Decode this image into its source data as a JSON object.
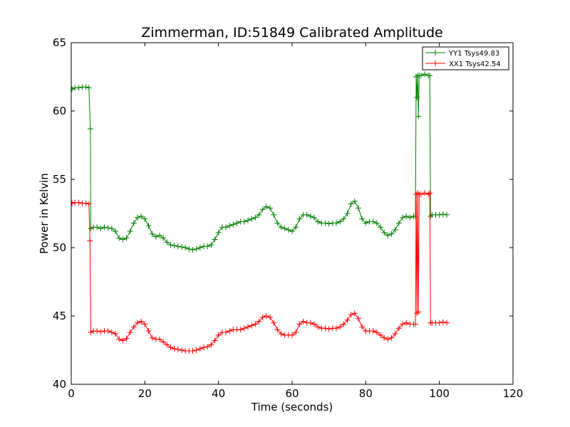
{
  "chart_data": {
    "type": "line",
    "title": "Zimmerman, ID:51849 Calibrated Amplitude",
    "xlabel": "Time (seconds)",
    "ylabel": "Power in Kelvin",
    "xlim": [
      0,
      120
    ],
    "ylim": [
      40,
      65
    ],
    "xticks": [
      0,
      20,
      40,
      60,
      80,
      100,
      120
    ],
    "yticks": [
      40,
      45,
      50,
      55,
      60,
      65
    ],
    "grid": false,
    "legend_position": "top-right",
    "marker": "+",
    "series": [
      {
        "name": "YY1 Tsys49.83",
        "color": "#008000",
        "points": [
          [
            0.2,
            61.6
          ],
          [
            1,
            61.7
          ],
          [
            2,
            61.7
          ],
          [
            3,
            61.75
          ],
          [
            4,
            61.75
          ],
          [
            4.8,
            61.7
          ],
          [
            5.2,
            58.7
          ],
          [
            5.3,
            51.4
          ],
          [
            6,
            51.5
          ],
          [
            7,
            51.5
          ],
          [
            8,
            51.4
          ],
          [
            9,
            51.5
          ],
          [
            10,
            51.45
          ],
          [
            11,
            51.4
          ],
          [
            12,
            51.2
          ],
          [
            13,
            50.7
          ],
          [
            14,
            50.6
          ],
          [
            15,
            50.7
          ],
          [
            16,
            51.2
          ],
          [
            17,
            51.8
          ],
          [
            18,
            52.2
          ],
          [
            19,
            52.3
          ],
          [
            20,
            52.1
          ],
          [
            21,
            51.6
          ],
          [
            22,
            51.0
          ],
          [
            23,
            50.8
          ],
          [
            24,
            50.9
          ],
          [
            25,
            50.7
          ],
          [
            26,
            50.4
          ],
          [
            27,
            50.2
          ],
          [
            28,
            50.15
          ],
          [
            29,
            50.1
          ],
          [
            30,
            50.05
          ],
          [
            31,
            50.0
          ],
          [
            32,
            49.9
          ],
          [
            33,
            49.85
          ],
          [
            34,
            49.9
          ],
          [
            35,
            50.0
          ],
          [
            36,
            50.1
          ],
          [
            37,
            50.1
          ],
          [
            38,
            50.2
          ],
          [
            39,
            50.6
          ],
          [
            40,
            51.1
          ],
          [
            41,
            51.5
          ],
          [
            42,
            51.5
          ],
          [
            43,
            51.6
          ],
          [
            44,
            51.7
          ],
          [
            45,
            51.8
          ],
          [
            46,
            51.9
          ],
          [
            47,
            51.9
          ],
          [
            48,
            52.0
          ],
          [
            49,
            52.1
          ],
          [
            50,
            52.2
          ],
          [
            51,
            52.4
          ],
          [
            52,
            52.8
          ],
          [
            53,
            53.0
          ],
          [
            54,
            52.9
          ],
          [
            55,
            52.4
          ],
          [
            56,
            51.8
          ],
          [
            57,
            51.5
          ],
          [
            58,
            51.4
          ],
          [
            59,
            51.3
          ],
          [
            60,
            51.2
          ],
          [
            61,
            51.5
          ],
          [
            62,
            52.1
          ],
          [
            63,
            52.4
          ],
          [
            64,
            52.4
          ],
          [
            65,
            52.3
          ],
          [
            66,
            52.2
          ],
          [
            67,
            51.9
          ],
          [
            68,
            51.8
          ],
          [
            69,
            51.8
          ],
          [
            70,
            51.75
          ],
          [
            71,
            51.8
          ],
          [
            72,
            51.8
          ],
          [
            73,
            51.9
          ],
          [
            74,
            52.1
          ],
          [
            75,
            52.5
          ],
          [
            76,
            53.2
          ],
          [
            77,
            53.4
          ],
          [
            78,
            52.9
          ],
          [
            79,
            52.1
          ],
          [
            80,
            51.8
          ],
          [
            81,
            51.9
          ],
          [
            82,
            51.9
          ],
          [
            83,
            51.8
          ],
          [
            84,
            51.5
          ],
          [
            85,
            51.1
          ],
          [
            86,
            50.9
          ],
          [
            87,
            51.0
          ],
          [
            88,
            51.3
          ],
          [
            89,
            51.8
          ],
          [
            90,
            52.2
          ],
          [
            91,
            52.3
          ],
          [
            92,
            52.2
          ],
          [
            93,
            52.3
          ],
          [
            93.5,
            52.3
          ],
          [
            93.7,
            62.5
          ],
          [
            93.9,
            61.0
          ],
          [
            94.1,
            62.6
          ],
          [
            94.3,
            59.6
          ],
          [
            94.5,
            62.6
          ],
          [
            95,
            62.6
          ],
          [
            96,
            62.7
          ],
          [
            97,
            62.6
          ],
          [
            97.4,
            62.6
          ],
          [
            97.6,
            52.3
          ],
          [
            98,
            52.4
          ],
          [
            99,
            52.4
          ],
          [
            100,
            52.4
          ],
          [
            101,
            52.45
          ],
          [
            102,
            52.4
          ]
        ]
      },
      {
        "name": "XX1 Tsys42.54",
        "color": "#ff0000",
        "points": [
          [
            0.2,
            53.25
          ],
          [
            1,
            53.3
          ],
          [
            2,
            53.3
          ],
          [
            3,
            53.25
          ],
          [
            4,
            53.25
          ],
          [
            4.8,
            53.2
          ],
          [
            5.1,
            50.5
          ],
          [
            5.3,
            43.8
          ],
          [
            6,
            43.9
          ],
          [
            7,
            43.9
          ],
          [
            8,
            43.85
          ],
          [
            9,
            43.9
          ],
          [
            10,
            43.9
          ],
          [
            11,
            43.8
          ],
          [
            12,
            43.7
          ],
          [
            13,
            43.3
          ],
          [
            14,
            43.2
          ],
          [
            15,
            43.35
          ],
          [
            16,
            43.8
          ],
          [
            17,
            44.2
          ],
          [
            18,
            44.5
          ],
          [
            19,
            44.6
          ],
          [
            20,
            44.4
          ],
          [
            21,
            43.9
          ],
          [
            22,
            43.4
          ],
          [
            23,
            43.3
          ],
          [
            24,
            43.3
          ],
          [
            25,
            43.1
          ],
          [
            26,
            42.9
          ],
          [
            27,
            42.7
          ],
          [
            28,
            42.6
          ],
          [
            29,
            42.55
          ],
          [
            30,
            42.5
          ],
          [
            31,
            42.45
          ],
          [
            32,
            42.45
          ],
          [
            33,
            42.45
          ],
          [
            34,
            42.5
          ],
          [
            35,
            42.6
          ],
          [
            36,
            42.7
          ],
          [
            37,
            42.75
          ],
          [
            38,
            42.9
          ],
          [
            39,
            43.2
          ],
          [
            40,
            43.6
          ],
          [
            41,
            43.8
          ],
          [
            42,
            43.8
          ],
          [
            43,
            43.9
          ],
          [
            44,
            44.0
          ],
          [
            45,
            44.0
          ],
          [
            46,
            44.0
          ],
          [
            47,
            44.1
          ],
          [
            48,
            44.2
          ],
          [
            49,
            44.3
          ],
          [
            50,
            44.4
          ],
          [
            51,
            44.6
          ],
          [
            52,
            44.9
          ],
          [
            53,
            45.0
          ],
          [
            54,
            44.9
          ],
          [
            55,
            44.5
          ],
          [
            56,
            44.0
          ],
          [
            57,
            43.7
          ],
          [
            58,
            43.6
          ],
          [
            59,
            43.6
          ],
          [
            60,
            43.6
          ],
          [
            61,
            43.8
          ],
          [
            62,
            44.4
          ],
          [
            63,
            44.6
          ],
          [
            64,
            44.5
          ],
          [
            65,
            44.5
          ],
          [
            66,
            44.4
          ],
          [
            67,
            44.2
          ],
          [
            68,
            44.1
          ],
          [
            69,
            44.1
          ],
          [
            70,
            44.05
          ],
          [
            71,
            44.1
          ],
          [
            72,
            44.1
          ],
          [
            73,
            44.2
          ],
          [
            74,
            44.4
          ],
          [
            75,
            44.7
          ],
          [
            76,
            45.1
          ],
          [
            77,
            45.2
          ],
          [
            78,
            44.8
          ],
          [
            79,
            44.2
          ],
          [
            80,
            43.9
          ],
          [
            81,
            43.9
          ],
          [
            82,
            43.9
          ],
          [
            83,
            43.8
          ],
          [
            84,
            43.6
          ],
          [
            85,
            43.4
          ],
          [
            86,
            43.3
          ],
          [
            87,
            43.4
          ],
          [
            88,
            43.7
          ],
          [
            89,
            44.1
          ],
          [
            90,
            44.4
          ],
          [
            91,
            44.5
          ],
          [
            92,
            44.4
          ],
          [
            93,
            44.4
          ],
          [
            93.5,
            44.4
          ],
          [
            93.7,
            53.9
          ],
          [
            93.9,
            45.2
          ],
          [
            94.1,
            54.0
          ],
          [
            94.3,
            45.3
          ],
          [
            94.5,
            53.9
          ],
          [
            95,
            53.9
          ],
          [
            96,
            54.0
          ],
          [
            97,
            53.9
          ],
          [
            97.4,
            54.0
          ],
          [
            97.6,
            44.5
          ],
          [
            98,
            44.5
          ],
          [
            99,
            44.5
          ],
          [
            100,
            44.5
          ],
          [
            101,
            44.55
          ],
          [
            102,
            44.5
          ]
        ]
      }
    ]
  }
}
